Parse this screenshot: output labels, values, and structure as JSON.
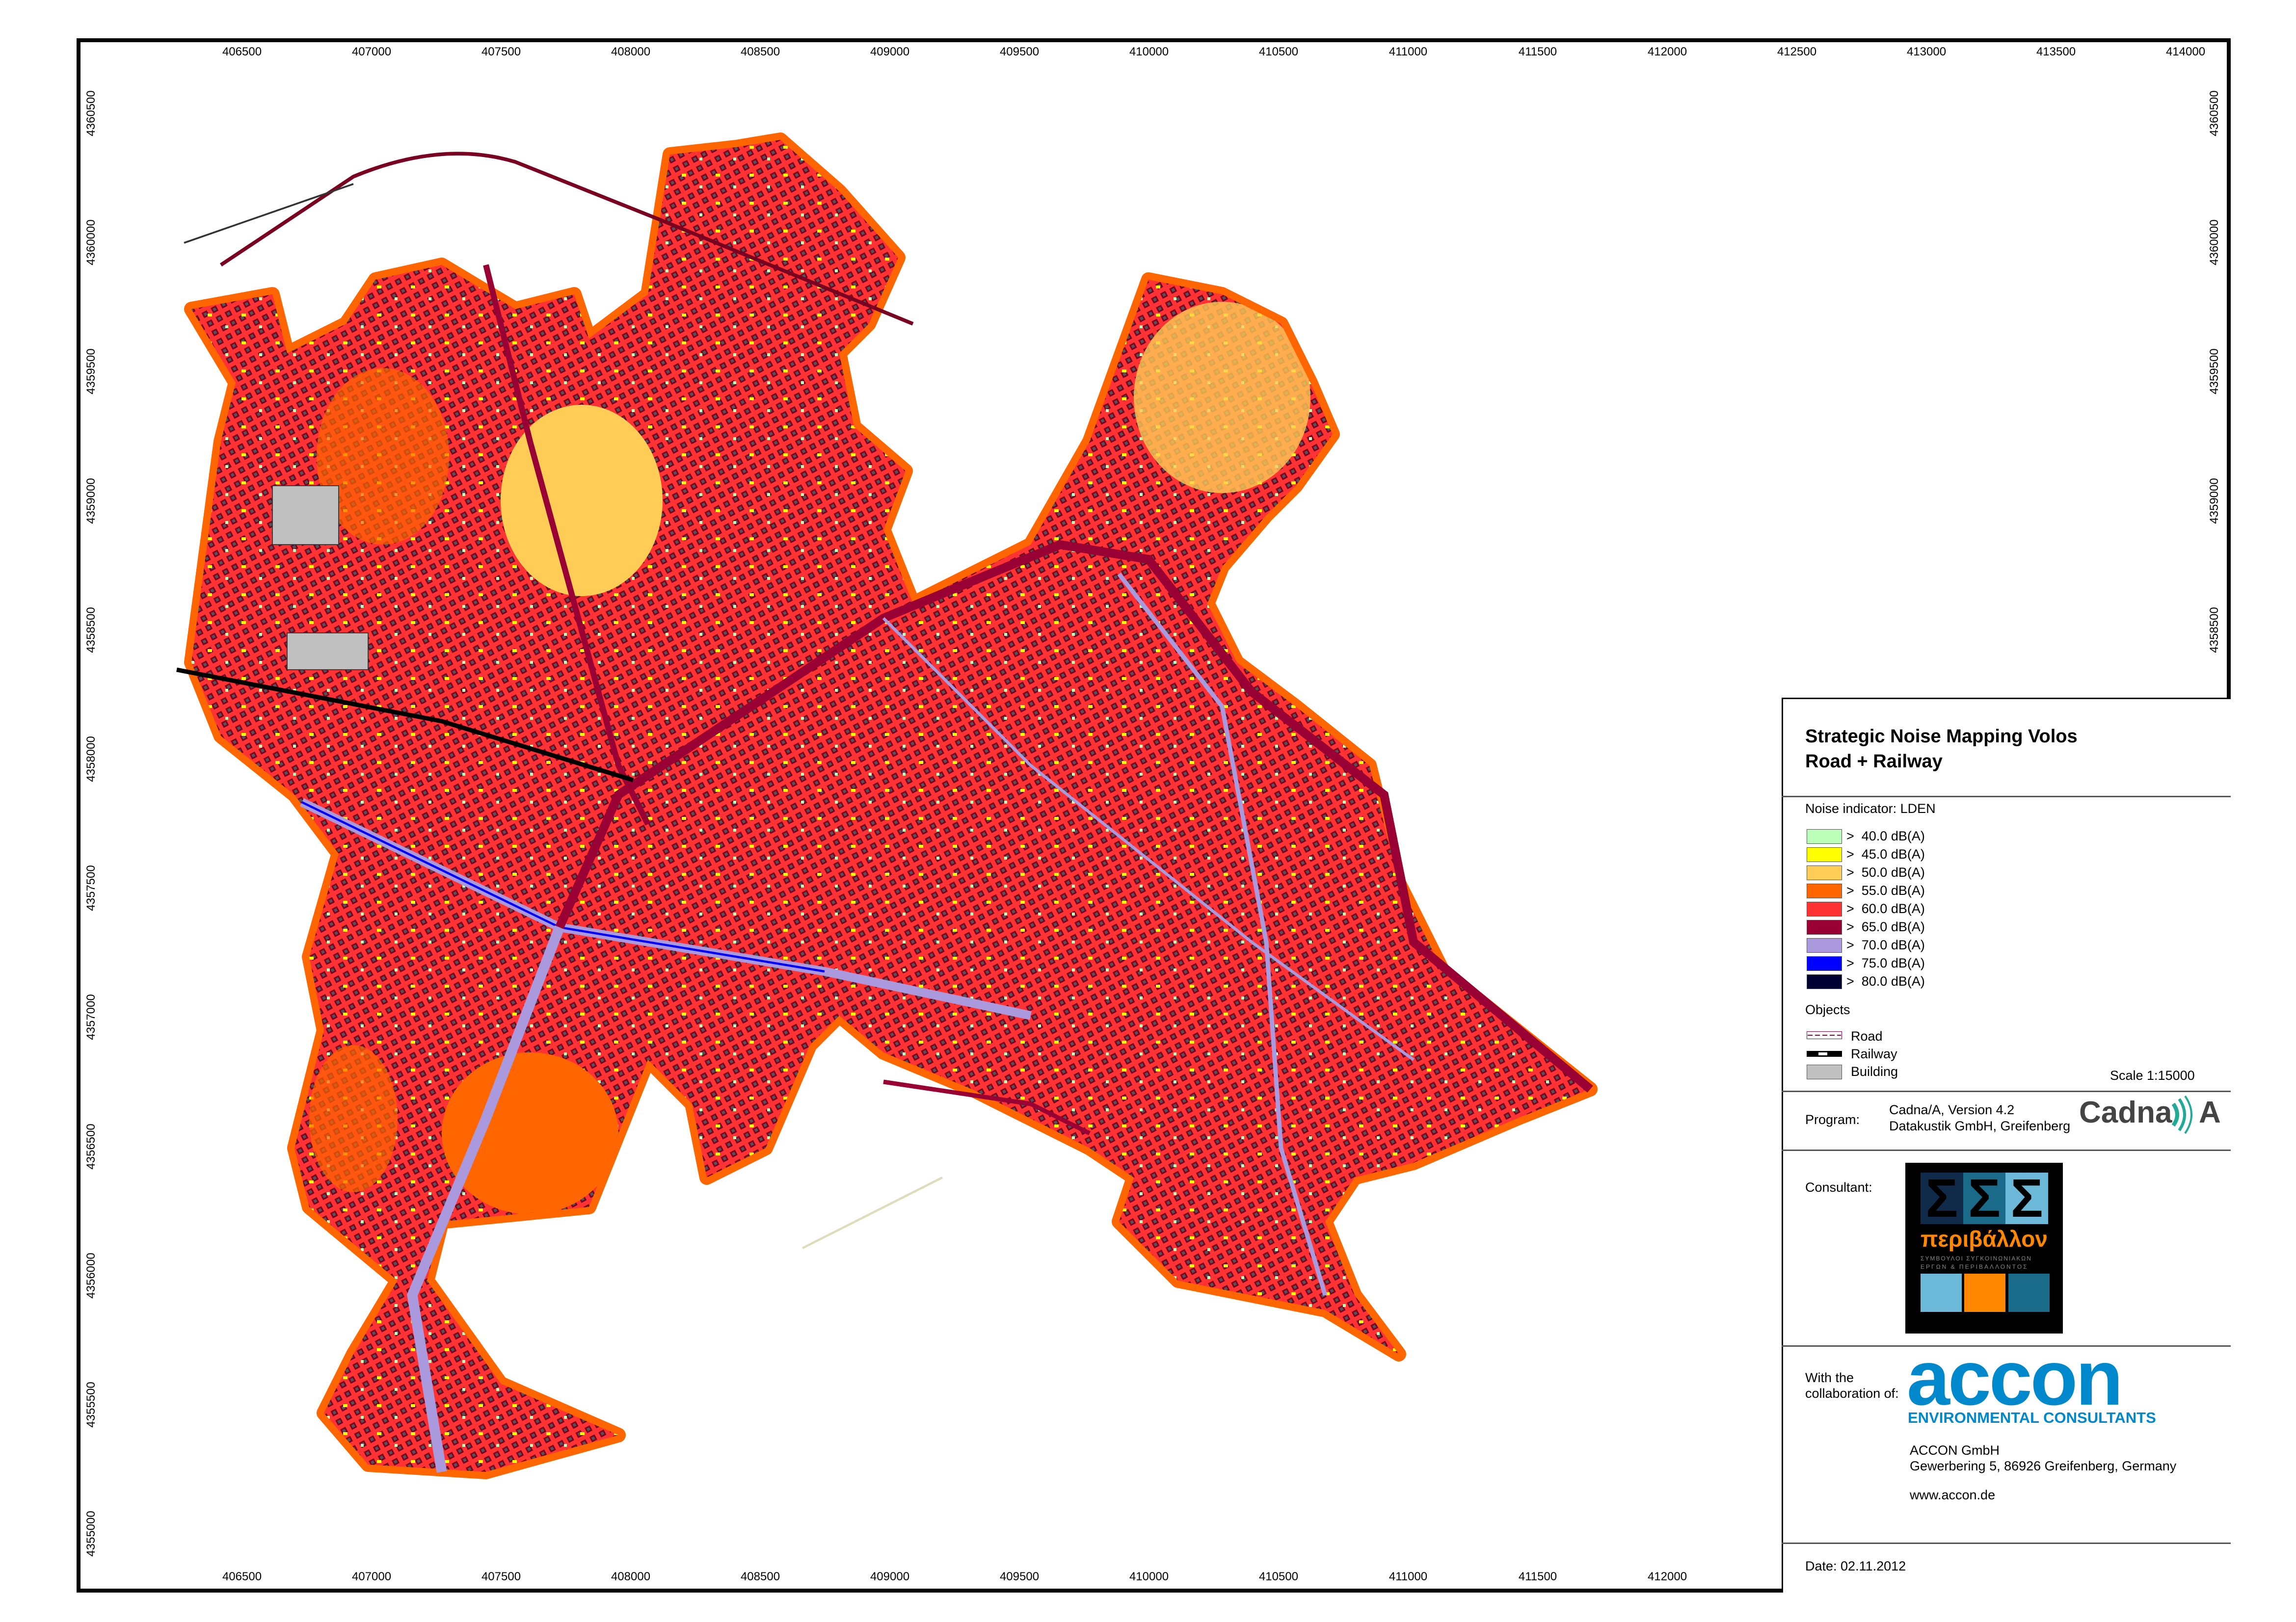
{
  "axes": {
    "x_ticks_top": [
      406500,
      407000,
      407500,
      408000,
      408500,
      409000,
      409500,
      410000,
      410500,
      411000,
      411500,
      412000,
      412500,
      413000,
      413500,
      414000
    ],
    "x_ticks_bottom": [
      406500,
      407000,
      407500,
      408000,
      408500,
      409000,
      409500,
      410000,
      410500,
      411000,
      411500,
      412000
    ],
    "y_ticks_left": [
      4360500,
      4360000,
      4359500,
      4359000,
      4358500,
      4358000,
      4357500,
      4357000,
      4356500,
      4356000,
      4355500,
      4355000
    ],
    "y_ticks_right": [
      4360500,
      4360000,
      4359500,
      4359000,
      4358500
    ]
  },
  "legend": {
    "title_line1": "Strategic Noise Mapping Volos",
    "title_line2": "Road + Railway",
    "indicator": "Noise indicator: LDEN",
    "levels": [
      {
        "label": ">  40.0 dB(A)",
        "color": "#bbffbb"
      },
      {
        "label": ">  45.0 dB(A)",
        "color": "#ffff00"
      },
      {
        "label": ">  50.0 dB(A)",
        "color": "#ffcc55"
      },
      {
        "label": ">  55.0 dB(A)",
        "color": "#ff6600"
      },
      {
        "label": ">  60.0 dB(A)",
        "color": "#ff3333"
      },
      {
        "label": ">  65.0 dB(A)",
        "color": "#990033"
      },
      {
        "label": ">  70.0 dB(A)",
        "color": "#aa99dd"
      },
      {
        "label": ">  75.0 dB(A)",
        "color": "#0000ff"
      },
      {
        "label": ">  80.0 dB(A)",
        "color": "#000033"
      }
    ],
    "objects_heading": "Objects",
    "objects": [
      {
        "label": "Road",
        "icon": "road-line-icon"
      },
      {
        "label": "Railway",
        "icon": "railway-line-icon"
      },
      {
        "label": "Building",
        "icon": "building-swatch-icon",
        "color": "#c0c0c0"
      }
    ],
    "scale": "Scale 1:15000"
  },
  "program": {
    "label": "Program:",
    "line1": "Cadna/A, Version 4.2",
    "line2": "Datakustik GmbH, Greifenberg",
    "logo_text": "Cadna A"
  },
  "consultant": {
    "label": "Consultant:",
    "logo_text": "ΣΣΣ & περιβάλλον",
    "logo_sub1": "ΣΥΜΒΟΥΛΟΙ ΣΥΓΚΟΙΝΩΝΙΑΚΩΝ",
    "logo_sub2": "ΕΡΓΩΝ & ΠΕΡΙΒΑΛΛΟΝΤΟΣ"
  },
  "collaboration": {
    "label_line1": "With the",
    "label_line2": "collaboration of:",
    "logo_text": "accon",
    "logo_sub": "ENVIRONMENTAL CONSULTANTS",
    "company": "ACCON GmbH",
    "address": "Gewerbering 5, 86926 Greifenberg, Germany",
    "website": "www.accon.de"
  },
  "date": "Date: 02.11.2012"
}
